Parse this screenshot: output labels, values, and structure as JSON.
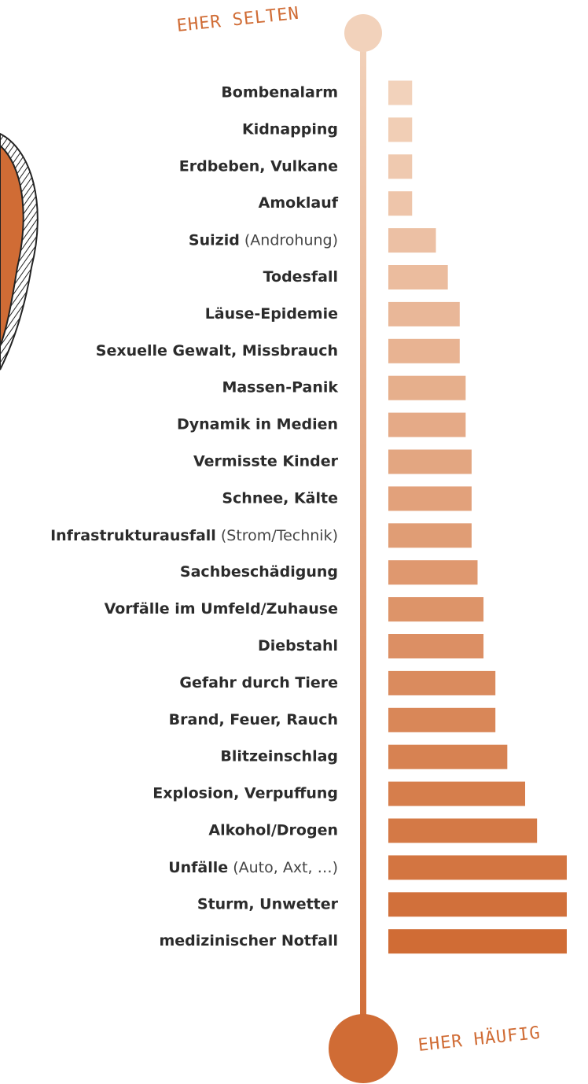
{
  "chart_data": {
    "type": "bar",
    "orientation": "horizontal",
    "annotations": [
      "EHER SELTEN",
      "EHER HÄUFIG"
    ],
    "categories": [
      "Bombenalarm",
      "Kidnapping",
      "Erdbeben, Vulkane",
      "Amoklauf",
      "Suizid (Androhung)",
      "Todesfall",
      "Läuse-Epidemie",
      "Sexuelle Gewalt, Missbrauch",
      "Massen-Panik",
      "Dynamik in Medien",
      "Vermisste Kinder",
      "Schnee, Kälte",
      "Infrastrukturausfall (Strom/Technik)",
      "Sachbeschädigung",
      "Vorfälle im Umfeld/Zuhause",
      "Diebstahl",
      "Gefahr durch Tiere",
      "Brand, Feuer, Rauch",
      "Blitzeinschlag",
      "Explosion, Verpuffung",
      "Alkohol/Drogen",
      "Unfälle (Auto, Axt, …)",
      "Sturm, Unwetter",
      "medizinischer Notfall"
    ],
    "values": [
      2,
      2,
      2,
      2,
      4,
      5,
      6,
      6,
      6.5,
      6.5,
      7,
      7,
      7,
      7.5,
      8,
      8,
      9,
      9,
      10,
      11.5,
      12.5,
      15,
      15,
      15
    ],
    "xlim": [
      0,
      15
    ],
    "color_range": [
      "#f2d2bb",
      "#d06c35"
    ]
  }
}
